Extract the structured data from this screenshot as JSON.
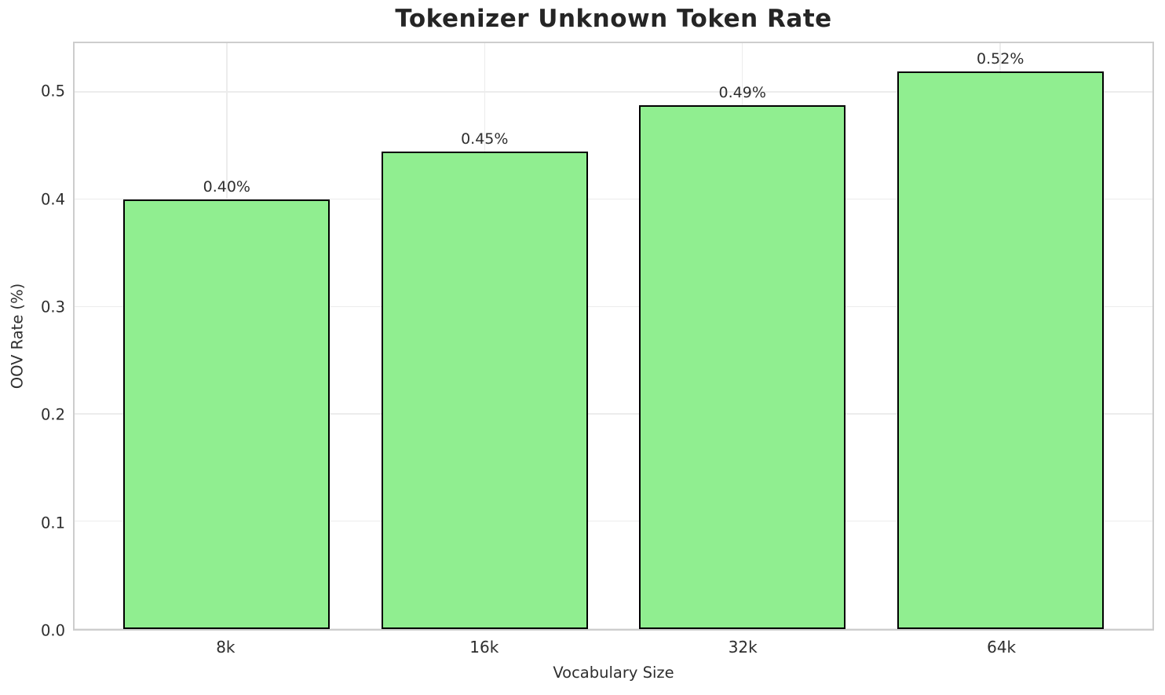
{
  "chart_data": {
    "type": "bar",
    "title": "Tokenizer Unknown Token Rate",
    "xlabel": "Vocabulary Size",
    "ylabel": "OOV Rate (%)",
    "categories": [
      "8k",
      "16k",
      "32k",
      "64k"
    ],
    "values": [
      0.4,
      0.445,
      0.488,
      0.52
    ],
    "bar_labels": [
      "0.40%",
      "0.45%",
      "0.49%",
      "0.52%"
    ],
    "ylim": [
      0,
      0.546
    ],
    "yticks": [
      0,
      0.1,
      0.2,
      0.3,
      0.4,
      0.5
    ],
    "ytick_labels": [
      "0.0",
      "0.1",
      "0.2",
      "0.3",
      "0.4",
      "0.5"
    ],
    "grid": true,
    "legend": "none",
    "colors": {
      "bar_fill": "#90EE90",
      "bar_edge": "#000000",
      "grid_line": "#ececec",
      "spine": "#cdcdcd",
      "title_text": "#252525",
      "axis_text": "#2e2e2e"
    }
  }
}
